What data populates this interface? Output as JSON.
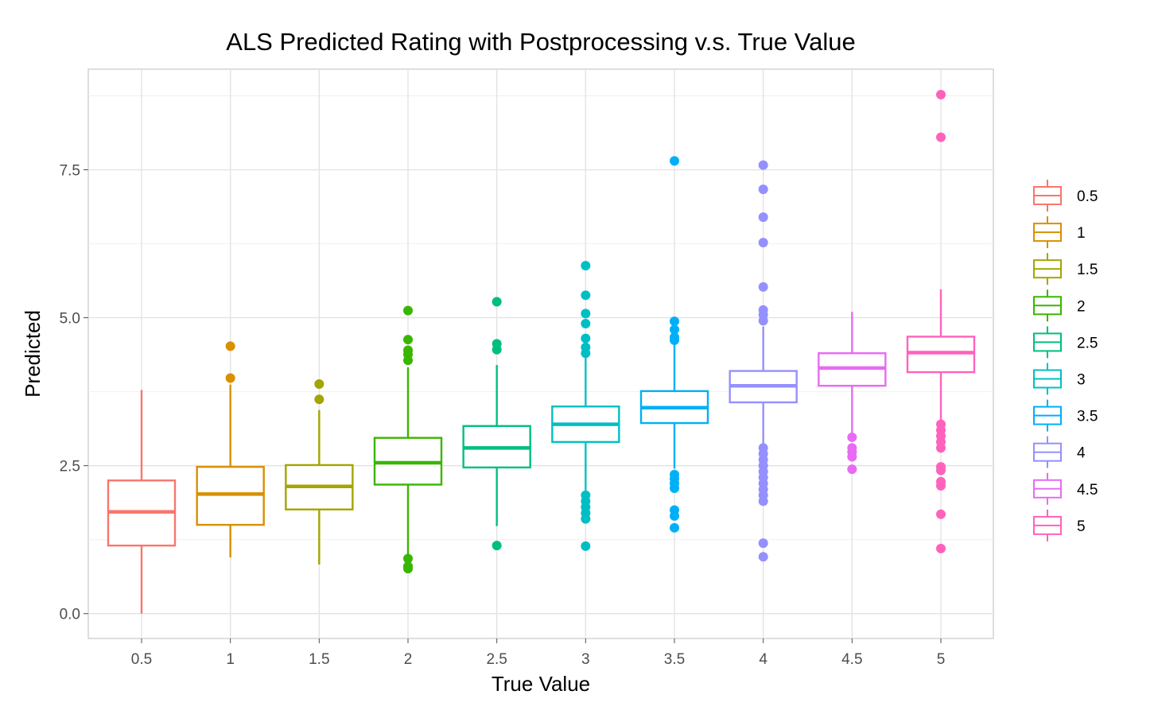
{
  "chart_data": {
    "type": "boxplot",
    "title": "ALS Predicted Rating with Postprocessing v.s. True Value",
    "xlabel": "True Value",
    "ylabel": "Predicted",
    "ylim": [
      -0.42,
      9.2
    ],
    "yticks": [
      0.0,
      2.5,
      5.0,
      7.5
    ],
    "ytick_labels": [
      "0.0",
      "2.5",
      "5.0",
      "7.5"
    ],
    "grid": true,
    "legend_position": "right",
    "categories": [
      "0.5",
      "1",
      "1.5",
      "2",
      "2.5",
      "3",
      "3.5",
      "4",
      "4.5",
      "5"
    ],
    "series": [
      {
        "name": "0.5",
        "color": "#F8766D",
        "whisker_low": 0.0,
        "q1": 1.15,
        "median": 1.72,
        "q3": 2.25,
        "whisker_high": 3.78,
        "outliers": []
      },
      {
        "name": "1",
        "color": "#D89000",
        "whisker_low": 0.95,
        "q1": 1.5,
        "median": 2.02,
        "q3": 2.48,
        "whisker_high": 3.87,
        "outliers": [
          3.98,
          4.52
        ]
      },
      {
        "name": "1.5",
        "color": "#A3A500",
        "whisker_low": 0.83,
        "q1": 1.76,
        "median": 2.15,
        "q3": 2.51,
        "whisker_high": 3.44,
        "outliers": [
          3.62,
          3.88
        ]
      },
      {
        "name": "2",
        "color": "#39B600",
        "whisker_low": 1.0,
        "q1": 2.18,
        "median": 2.55,
        "q3": 2.97,
        "whisker_high": 4.16,
        "outliers": [
          0.76,
          0.8,
          0.93,
          4.28,
          4.38,
          4.45,
          4.63,
          5.12
        ]
      },
      {
        "name": "2.5",
        "color": "#00BF7D",
        "whisker_low": 1.48,
        "q1": 2.47,
        "median": 2.8,
        "q3": 3.17,
        "whisker_high": 4.2,
        "outliers": [
          1.15,
          4.46,
          4.56,
          5.27
        ]
      },
      {
        "name": "3",
        "color": "#00BFC4",
        "whisker_low": 2.08,
        "q1": 2.9,
        "median": 3.2,
        "q3": 3.5,
        "whisker_high": 4.35,
        "outliers": [
          1.14,
          1.6,
          1.7,
          1.8,
          1.9,
          2.0,
          4.4,
          4.5,
          4.65,
          4.9,
          5.07,
          5.38,
          5.88
        ]
      },
      {
        "name": "3.5",
        "color": "#00B0F6",
        "whisker_low": 2.45,
        "q1": 3.22,
        "median": 3.48,
        "q3": 3.76,
        "whisker_high": 4.55,
        "outliers": [
          1.45,
          1.65,
          1.75,
          2.12,
          2.2,
          2.28,
          2.35,
          4.62,
          4.67,
          4.8,
          4.94,
          7.65
        ]
      },
      {
        "name": "4",
        "color": "#9590FF",
        "whisker_low": 2.85,
        "q1": 3.57,
        "median": 3.85,
        "q3": 4.1,
        "whisker_high": 4.85,
        "outliers": [
          0.96,
          1.19,
          1.9,
          2.0,
          2.1,
          2.2,
          2.3,
          2.4,
          2.5,
          2.6,
          2.7,
          2.8,
          4.95,
          5.05,
          5.13,
          5.52,
          6.27,
          6.7,
          7.17,
          7.58
        ]
      },
      {
        "name": "4.5",
        "color": "#E76BF3",
        "whisker_low": 3.0,
        "q1": 3.85,
        "median": 4.15,
        "q3": 4.4,
        "whisker_high": 5.1,
        "outliers": [
          2.44,
          2.65,
          2.73,
          2.8,
          2.98
        ]
      },
      {
        "name": "5",
        "color": "#FF62BC",
        "whisker_low": 3.25,
        "q1": 4.08,
        "median": 4.41,
        "q3": 4.68,
        "whisker_high": 5.48,
        "outliers": [
          1.1,
          1.68,
          2.16,
          2.23,
          2.42,
          2.48,
          2.8,
          2.9,
          3.0,
          3.1,
          3.2,
          8.05,
          8.77
        ]
      }
    ]
  }
}
